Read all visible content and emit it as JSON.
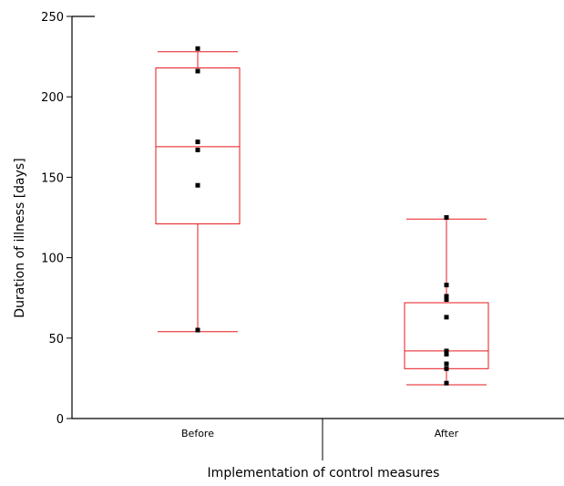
{
  "chart_data": {
    "type": "box",
    "title": "",
    "xlabel": "Implementation of control measures",
    "ylabel": "Duration of illness [days]",
    "ylim": [
      0,
      250
    ],
    "yticks": [
      0,
      50,
      100,
      150,
      200,
      250
    ],
    "grid": false,
    "legend": "none",
    "categories": [
      "Before",
      "After"
    ],
    "boxes": [
      {
        "category": "Before",
        "whisker_low": 54,
        "q1": 121,
        "median": 169,
        "q3": 218,
        "whisker_high": 228,
        "points": [
          230,
          216,
          172,
          167,
          145,
          55
        ]
      },
      {
        "category": "After",
        "whisker_low": 21,
        "q1": 31,
        "median": 42,
        "q3": 72,
        "whisker_high": 124,
        "points": [
          125,
          83,
          76,
          74,
          63,
          42,
          40,
          34,
          31,
          22
        ]
      }
    ],
    "colors": {
      "box": "#e8191e",
      "points": "#000000",
      "axis": "#000000"
    }
  }
}
